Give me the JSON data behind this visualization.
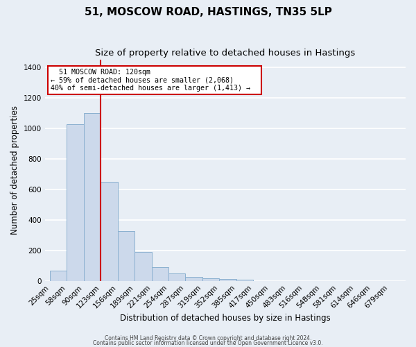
{
  "title": "51, MOSCOW ROAD, HASTINGS, TN35 5LP",
  "subtitle": "Size of property relative to detached houses in Hastings",
  "xlabel": "Distribution of detached houses by size in Hastings",
  "ylabel": "Number of detached properties",
  "footer_line1": "Contains HM Land Registry data © Crown copyright and database right 2024.",
  "footer_line2": "Contains public sector information licensed under the Open Government Licence v3.0.",
  "bin_labels": [
    "25sqm",
    "58sqm",
    "90sqm",
    "123sqm",
    "156sqm",
    "189sqm",
    "221sqm",
    "254sqm",
    "287sqm",
    "319sqm",
    "352sqm",
    "385sqm",
    "417sqm",
    "450sqm",
    "483sqm",
    "516sqm",
    "548sqm",
    "581sqm",
    "614sqm",
    "646sqm",
    "679sqm"
  ],
  "bar_heights": [
    65,
    1025,
    1100,
    650,
    325,
    190,
    90,
    47,
    25,
    18,
    12,
    10,
    0,
    0,
    0,
    0,
    0,
    0,
    0,
    0,
    0
  ],
  "bar_color": "#ccd9eb",
  "bar_edge_color": "#8ab0d0",
  "red_line_x": 3,
  "red_line_label": "51 MOSCOW ROAD: 120sqm",
  "annotation_line2": "← 59% of detached houses are smaller (2,068)",
  "annotation_line3": "40% of semi-detached houses are larger (1,413) →",
  "annotation_box_facecolor": "#ffffff",
  "annotation_box_edgecolor": "#cc0000",
  "ylim": [
    0,
    1450
  ],
  "yticks": [
    0,
    200,
    400,
    600,
    800,
    1000,
    1200,
    1400
  ],
  "bg_color": "#e8eef5",
  "plot_bg_color": "#e8eef5",
  "grid_color": "#ffffff",
  "title_fontsize": 11,
  "subtitle_fontsize": 9.5,
  "axis_label_fontsize": 8.5,
  "tick_fontsize": 7.5
}
